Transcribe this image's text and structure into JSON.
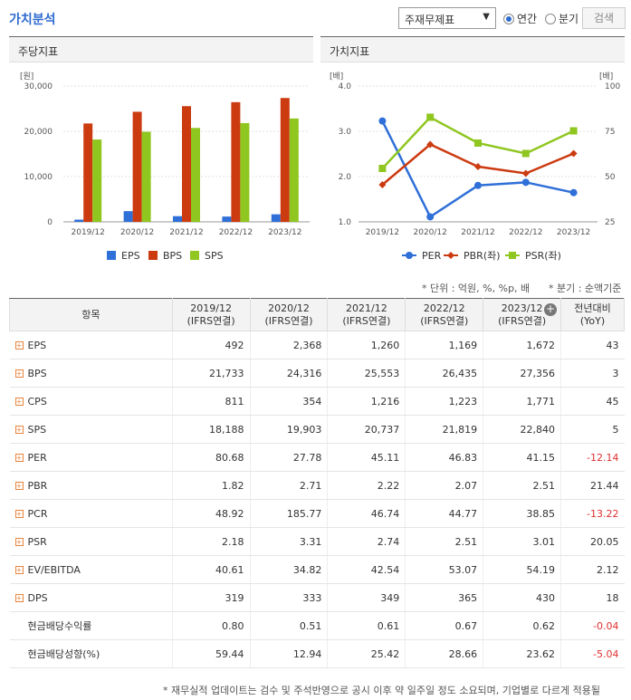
{
  "header": {
    "title": "가치분석",
    "select_value": "주재무제표",
    "radio_annual": "연간",
    "radio_quarter": "분기",
    "search_label": "검색"
  },
  "left_panel": {
    "title": "주당지표"
  },
  "right_panel": {
    "title": "가치지표"
  },
  "chart_data": [
    {
      "type": "bar",
      "unit_label": "[원]",
      "categories": [
        "2019/12",
        "2020/12",
        "2021/12",
        "2022/12",
        "2023/12"
      ],
      "yticks": [
        "30,000",
        "20,000",
        "10,000",
        "0"
      ],
      "ylim": [
        0,
        30000
      ],
      "series": [
        {
          "name": "EPS",
          "color": "#2f6fd8",
          "values": [
            492,
            2368,
            1260,
            1169,
            1672
          ]
        },
        {
          "name": "BPS",
          "color": "#cc3a10",
          "values": [
            21733,
            24316,
            25553,
            26435,
            27356
          ]
        },
        {
          "name": "SPS",
          "color": "#8fc61f",
          "values": [
            18188,
            19903,
            20737,
            21819,
            22840
          ]
        }
      ]
    },
    {
      "type": "line",
      "unit_left": "[배]",
      "unit_right": "[배]",
      "categories": [
        "2019/12",
        "2020/12",
        "2021/12",
        "2022/12",
        "2023/12"
      ],
      "left_ticks": [
        "4.0",
        "3.0",
        "2.0",
        "1.0"
      ],
      "right_ticks": [
        "100",
        "75",
        "50",
        "25"
      ],
      "ylim_left": [
        1,
        4
      ],
      "ylim_right": [
        25,
        100
      ],
      "series": [
        {
          "name": "PER",
          "axis": "right",
          "color": "#2f6fd8",
          "marker": "circle",
          "values": [
            80.68,
            27.78,
            45.11,
            46.83,
            41.15
          ]
        },
        {
          "name": "PBR(좌)",
          "axis": "left",
          "color": "#cc3a10",
          "marker": "diamond",
          "values": [
            1.82,
            2.71,
            2.22,
            2.07,
            2.51
          ]
        },
        {
          "name": "PSR(좌)",
          "axis": "left",
          "color": "#8fc61f",
          "marker": "square",
          "values": [
            2.18,
            3.31,
            2.74,
            2.51,
            3.01
          ]
        }
      ]
    }
  ],
  "notes": {
    "unit": "* 단위 : 억원, %, %p, 배",
    "quarter": "* 분기 : 순액기준"
  },
  "table": {
    "header_item": "항목",
    "columns": [
      {
        "year": "2019/12",
        "basis": "(IFRS연결)"
      },
      {
        "year": "2020/12",
        "basis": "(IFRS연결)"
      },
      {
        "year": "2021/12",
        "basis": "(IFRS연결)"
      },
      {
        "year": "2022/12",
        "basis": "(IFRS연결)"
      },
      {
        "year": "2023/12",
        "basis": "(IFRS연결)"
      }
    ],
    "yoy_header": {
      "line1": "전년대비",
      "line2": "(YoY)"
    },
    "rows": [
      {
        "label": "EPS",
        "expand": true,
        "values": [
          "492",
          "2,368",
          "1,260",
          "1,169",
          "1,672"
        ],
        "yoy": "43"
      },
      {
        "label": "BPS",
        "expand": true,
        "values": [
          "21,733",
          "24,316",
          "25,553",
          "26,435",
          "27,356"
        ],
        "yoy": "3"
      },
      {
        "label": "CPS",
        "expand": true,
        "values": [
          "811",
          "354",
          "1,216",
          "1,223",
          "1,771"
        ],
        "yoy": "45"
      },
      {
        "label": "SPS",
        "expand": true,
        "values": [
          "18,188",
          "19,903",
          "20,737",
          "21,819",
          "22,840"
        ],
        "yoy": "5"
      },
      {
        "label": "PER",
        "expand": true,
        "values": [
          "80.68",
          "27.78",
          "45.11",
          "46.83",
          "41.15"
        ],
        "yoy": "-12.14"
      },
      {
        "label": "PBR",
        "expand": true,
        "values": [
          "1.82",
          "2.71",
          "2.22",
          "2.07",
          "2.51"
        ],
        "yoy": "21.44"
      },
      {
        "label": "PCR",
        "expand": true,
        "values": [
          "48.92",
          "185.77",
          "46.74",
          "44.77",
          "38.85"
        ],
        "yoy": "-13.22"
      },
      {
        "label": "PSR",
        "expand": true,
        "values": [
          "2.18",
          "3.31",
          "2.74",
          "2.51",
          "3.01"
        ],
        "yoy": "20.05"
      },
      {
        "label": "EV/EBITDA",
        "expand": true,
        "values": [
          "40.61",
          "34.82",
          "42.54",
          "53.07",
          "54.19"
        ],
        "yoy": "2.12"
      },
      {
        "label": "DPS",
        "expand": true,
        "values": [
          "319",
          "333",
          "349",
          "365",
          "430"
        ],
        "yoy": "18"
      },
      {
        "label": "현금배당수익률",
        "expand": false,
        "values": [
          "0.80",
          "0.51",
          "0.61",
          "0.67",
          "0.62"
        ],
        "yoy": "-0.04"
      },
      {
        "label": "현금배당성향(%)",
        "expand": false,
        "values": [
          "59.44",
          "12.94",
          "25.42",
          "28.66",
          "23.62"
        ],
        "yoy": "-5.04"
      }
    ]
  },
  "footnote": "* 재무실적 업데이트는 검수 및 주석반영으로 공시 이후 약 일주일 정도 소요되며, 기업별로 다르게 적용될"
}
